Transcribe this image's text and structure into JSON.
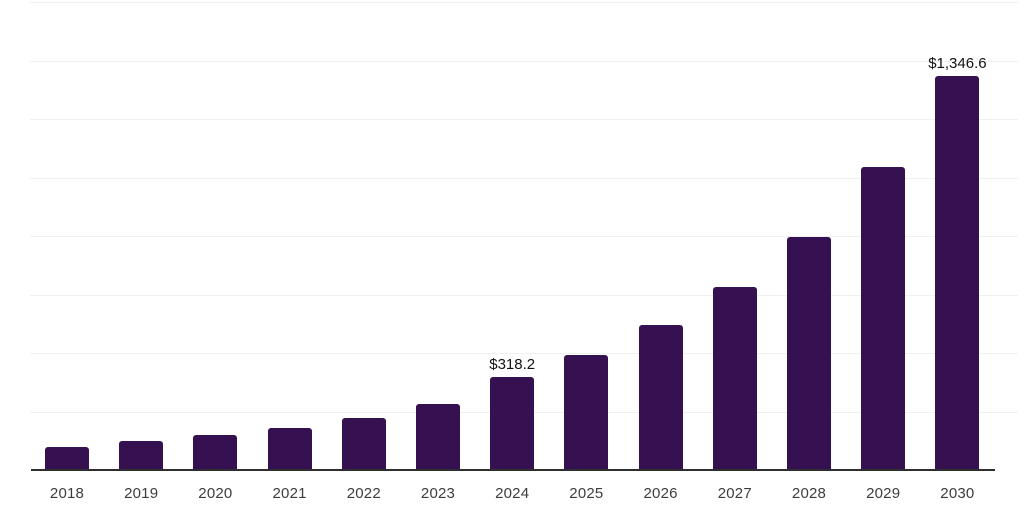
{
  "chart_data": {
    "type": "bar",
    "title": "",
    "xlabel": "",
    "ylabel": "",
    "categories": [
      "2018",
      "2019",
      "2020",
      "2021",
      "2022",
      "2023",
      "2024",
      "2025",
      "2026",
      "2027",
      "2028",
      "2029",
      "2030"
    ],
    "values": [
      80,
      100,
      119,
      144,
      178,
      226,
      318.2,
      392,
      495,
      625,
      795,
      1036,
      1346.6
    ],
    "data_labels": [
      "",
      "",
      "",
      "",
      "",
      "",
      "$318.2",
      "",
      "",
      "",
      "",
      "",
      "$1,346.6"
    ],
    "ylim": [
      0,
      1600
    ],
    "gridline_interval": 200,
    "grid_visible": true,
    "legend": "none",
    "colors": {
      "bar": "#351151",
      "gridline": "#f0f0f0",
      "axis_line": "#2e2e2e",
      "tick_label": "#3d3d3d",
      "value_label": "#111111",
      "background": "#ffffff"
    }
  }
}
